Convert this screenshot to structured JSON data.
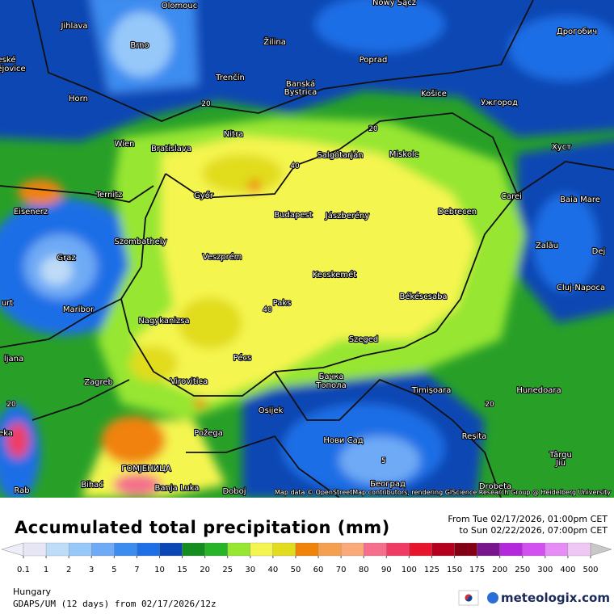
{
  "title": "Accumulated total precipitation (mm)",
  "period": [
    "From Tue 02/17/2026, 01:00pm CET",
    "to Sun 02/22/2026, 07:00pm CET"
  ],
  "region": "Hungary",
  "model": "GDAPS/UM (12 days) from 02/17/2026/12z",
  "brand": "meteologix.com",
  "attribution": "Map data © OpenStreetMap contributors, rendering GIScience Research Group @ Heidelberg University",
  "legend": {
    "values": [
      0.1,
      1,
      2,
      3,
      5,
      7,
      10,
      15,
      20,
      25,
      30,
      40,
      50,
      60,
      70,
      80,
      90,
      100,
      125,
      150,
      175,
      200,
      250,
      300,
      400,
      500
    ],
    "colors": [
      "#eeeef8",
      "#e6e6f5",
      "#bedcf8",
      "#96c8fa",
      "#6eaaf5",
      "#3c8cf0",
      "#1e6ee6",
      "#0a46b4",
      "#148c1e",
      "#28b428",
      "#96e632",
      "#f5f550",
      "#e1dc1e",
      "#f0820a",
      "#f5a050",
      "#faaa78",
      "#f56e8c",
      "#f03c64",
      "#e6142d",
      "#b4001e",
      "#820014",
      "#78148c",
      "#b428dc",
      "#d250f0",
      "#e68cf5",
      "#f0c8f5",
      "#c8c8c8"
    ]
  },
  "contour_labels": [
    "20",
    "20",
    "20",
    "20",
    "40",
    "40",
    "5"
  ],
  "cities": [
    "Olomouc",
    "Nowy Sącz",
    "Jihlava",
    "Brno",
    "Žilina",
    "Poprad",
    "Дрогобич",
    "eské",
    "ějovice",
    "Trenčín",
    "Banská",
    "Bystrica",
    "Košice",
    "Ужгород",
    "Horn",
    "Nitra",
    "Salgótarján",
    "Miskolc",
    "Хуст",
    "Wien",
    "Bratislava",
    "Ternitz",
    "Győr",
    "Carei",
    "Baia Mare",
    "Eisenerz",
    "Budapest",
    "Jászberény",
    "Debrecen",
    "Zalău",
    "Szombathely",
    "Graz",
    "Veszprém",
    "Dej",
    "Kecskemét",
    "Cluj-Napoca",
    "urt",
    "Maribor",
    "Paks",
    "Békéscsaba",
    "Nagykanizsa",
    "ljana",
    "Szeged",
    "Pécs",
    "Zagreb",
    "Virovitica",
    "Бачка",
    "Топола",
    "Timișoara",
    "Hunedoara",
    "Osijek",
    "Reșita",
    "Požega",
    "Нови Сад",
    "Târgu",
    "Jiu",
    "eka",
    "ГОМЈЕНИЦА",
    "Bihać",
    "Banja Luka",
    "Doboj",
    "Београд",
    "Drobeta",
    "Rab"
  ]
}
